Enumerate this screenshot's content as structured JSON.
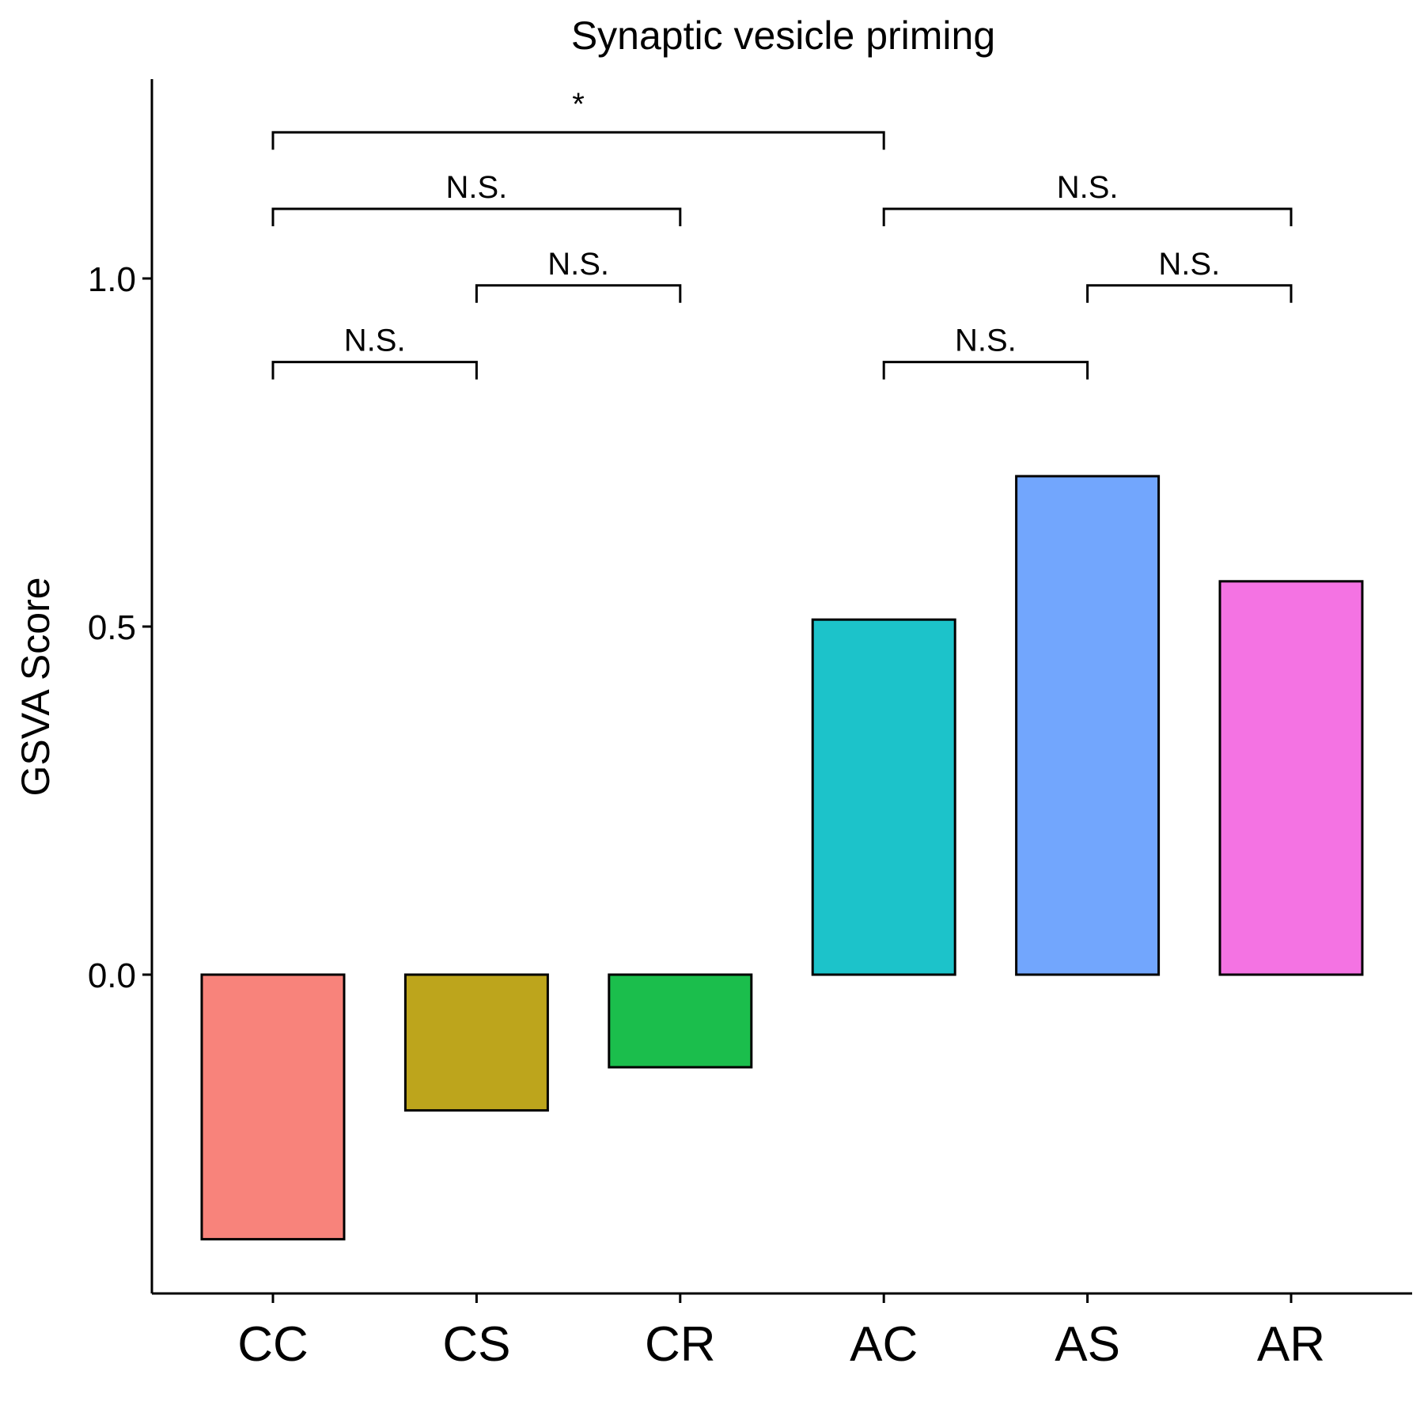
{
  "chart_data": {
    "type": "bar",
    "title": "Synaptic vesicle priming",
    "xlabel": "",
    "ylabel": "GSVA Score",
    "categories": [
      "CC",
      "CS",
      "CR",
      "AC",
      "AS",
      "AR"
    ],
    "values": [
      -0.38,
      -0.195,
      -0.133,
      0.51,
      0.716,
      0.565
    ],
    "colors": [
      "#F8837B",
      "#BDA51C",
      "#1BBE4C",
      "#1CC3CA",
      "#72A6FD",
      "#F473E3"
    ],
    "ylim": [
      -0.46,
      1.3
    ],
    "yticks": [
      0.0,
      0.5,
      1.0
    ],
    "ytick_labels": [
      "0.0",
      "0.5",
      "1.0"
    ],
    "grid": false,
    "comparisons": [
      {
        "from": "CC",
        "to": "CS",
        "label": "N.S.",
        "y": 0.88
      },
      {
        "from": "CS",
        "to": "CR",
        "label": "N.S.",
        "y": 0.99
      },
      {
        "from": "CC",
        "to": "CR",
        "label": "N.S.",
        "y": 1.1
      },
      {
        "from": "CC",
        "to": "AC",
        "label": "*",
        "y": 1.21
      },
      {
        "from": "AC",
        "to": "AS",
        "label": "N.S.",
        "y": 0.88
      },
      {
        "from": "AS",
        "to": "AR",
        "label": "N.S.",
        "y": 0.99
      },
      {
        "from": "AC",
        "to": "AR",
        "label": "N.S.",
        "y": 1.1
      }
    ]
  }
}
